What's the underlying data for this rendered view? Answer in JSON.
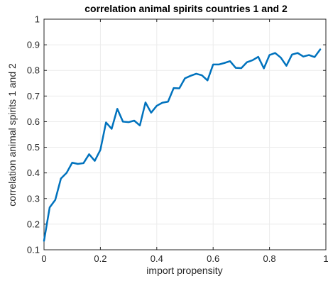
{
  "chart_data": {
    "type": "line",
    "title": "correlation animal spirits countries 1 and 2",
    "xlabel": "import propensity",
    "ylabel": "correlation animal spirits 1 and 2",
    "xlim": [
      0,
      1
    ],
    "ylim": [
      0.1,
      1
    ],
    "xticks": [
      0,
      0.2,
      0.4,
      0.6,
      0.8,
      1
    ],
    "xtick_labels": [
      "0",
      "0.2",
      "0.4",
      "0.6",
      "0.8",
      "1"
    ],
    "yticks": [
      0.1,
      0.2,
      0.3,
      0.4,
      0.5,
      0.6,
      0.7,
      0.8,
      0.9,
      1
    ],
    "ytick_labels": [
      "0.1",
      "0.2",
      "0.3",
      "0.4",
      "0.5",
      "0.6",
      "0.7",
      "0.8",
      "0.9",
      "1"
    ],
    "grid": true,
    "line_color": "#0072bd",
    "series": [
      {
        "x": [
          0,
          0.02,
          0.04,
          0.06,
          0.08,
          0.1,
          0.12,
          0.14,
          0.16,
          0.18,
          0.2,
          0.22,
          0.24,
          0.26,
          0.28,
          0.3,
          0.32,
          0.34,
          0.36,
          0.38,
          0.4,
          0.42,
          0.44,
          0.46,
          0.48,
          0.5,
          0.52,
          0.54,
          0.56,
          0.58,
          0.6,
          0.62,
          0.64,
          0.66,
          0.68,
          0.7,
          0.72,
          0.74,
          0.76,
          0.78,
          0.8,
          0.82,
          0.84,
          0.86,
          0.88,
          0.9,
          0.92,
          0.94,
          0.96,
          0.98
        ],
        "values": [
          0.135,
          0.265,
          0.295,
          0.378,
          0.4,
          0.44,
          0.435,
          0.438,
          0.473,
          0.447,
          0.49,
          0.597,
          0.572,
          0.65,
          0.6,
          0.598,
          0.604,
          0.585,
          0.675,
          0.635,
          0.662,
          0.674,
          0.678,
          0.731,
          0.73,
          0.769,
          0.779,
          0.787,
          0.781,
          0.761,
          0.823,
          0.823,
          0.829,
          0.836,
          0.81,
          0.809,
          0.832,
          0.84,
          0.853,
          0.808,
          0.86,
          0.868,
          0.85,
          0.818,
          0.862,
          0.868,
          0.854,
          0.86,
          0.852,
          0.882
        ]
      }
    ]
  }
}
